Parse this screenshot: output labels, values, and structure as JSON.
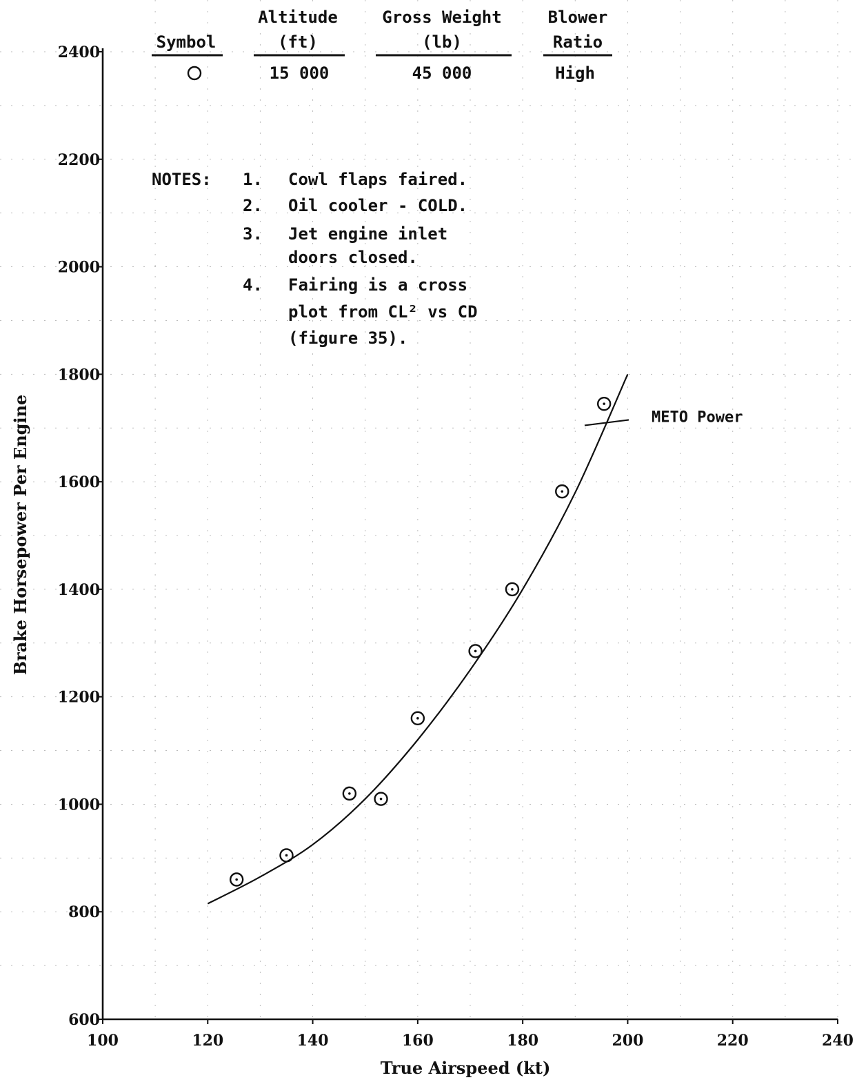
{
  "chart_data": {
    "type": "scatter",
    "xlabel": "True Airspeed (kt)",
    "ylabel": "Brake Horsepower Per Engine",
    "xlim": [
      100,
      240
    ],
    "ylim": [
      600,
      2400
    ],
    "xticks": [
      "100",
      "120",
      "140",
      "160",
      "180",
      "200",
      "220",
      "240"
    ],
    "yticks": [
      "600",
      "800",
      "1000",
      "1200",
      "1400",
      "1600",
      "1800",
      "2000",
      "2200",
      "2400"
    ],
    "grid": true,
    "series": [
      {
        "marker": "circle",
        "x": [
          125.5,
          135,
          147,
          153,
          160,
          171,
          178,
          187.5,
          195.5
        ],
        "y": [
          860,
          905,
          1020,
          1010,
          1160,
          1285,
          1400,
          1582,
          1745
        ]
      }
    ],
    "fairing": {
      "x": [
        120,
        130,
        140,
        150,
        160,
        170,
        180,
        190,
        200
      ],
      "y": [
        815,
        865,
        925,
        1010,
        1120,
        1250,
        1400,
        1580,
        1800
      ]
    },
    "meto": {
      "label": "METO Power",
      "x": 196,
      "y": 1710
    },
    "legend_table": {
      "headers": [
        {
          "line1": "",
          "line2": "Symbol"
        },
        {
          "line1": "Altitude",
          "line2": "(ft)"
        },
        {
          "line1": "Gross Weight",
          "line2": "(lb)"
        },
        {
          "line1": "Blower",
          "line2": "Ratio"
        }
      ],
      "row": [
        "O",
        "15 000",
        "45 000",
        "High"
      ]
    },
    "notes": {
      "heading": "NOTES:",
      "items": [
        {
          "num": "1.",
          "lines": [
            "Cowl flaps faired."
          ]
        },
        {
          "num": "2.",
          "lines": [
            "Oil cooler - COLD."
          ]
        },
        {
          "num": "3.",
          "lines": [
            "Jet engine inlet",
            "doors closed."
          ]
        },
        {
          "num": "4.",
          "lines": [
            "Fairing is a cross",
            "plot from CL² vs CD",
            "(figure 35)."
          ]
        }
      ]
    }
  }
}
